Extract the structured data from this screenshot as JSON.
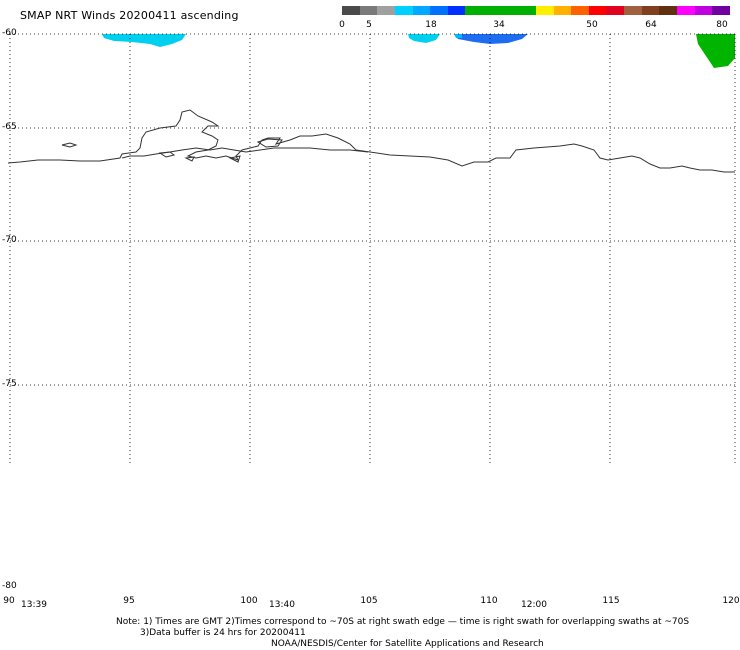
{
  "title": "SMAP NRT Winds 20200411 ascending",
  "colorbar": {
    "labels": [
      "0",
      "5",
      "18",
      "34",
      "50",
      "64",
      "80"
    ],
    "colors": [
      "#4a4a4a",
      "#7a7a7a",
      "#a0a0a0",
      "#00d0ff",
      "#00a8ff",
      "#0070ff",
      "#0030ff",
      "#00b000",
      "#00b000",
      "#00b000",
      "#00b000",
      "#ffee00",
      "#ffb000",
      "#ff6000",
      "#ff0000",
      "#e00020",
      "#a06040",
      "#804020",
      "#603010",
      "#ff00ff",
      "#c000e0",
      "#7000a0"
    ]
  },
  "lat_labels": [
    "-60",
    "-65",
    "-70",
    "-75",
    "-80"
  ],
  "lon_labels": [
    "90",
    "95",
    "100",
    "105",
    "110",
    "115",
    "120"
  ],
  "time_labels": [
    "13:39",
    "13:40",
    "12:00"
  ],
  "notes": {
    "line1": "Note: 1) Times are GMT 2)Times correspond to ~70S at right swath edge — time is right swath for overlapping swaths at ~70S",
    "line2": "3)Data buffer is 24 hrs for 20200411",
    "line3": "NOAA/NESDIS/Center for Satellite Applications and Research"
  },
  "swath_colors": {
    "light_cyan": "#00d0f0",
    "mid_blue": "#0090ff",
    "dark_blue": "#2060ff",
    "green": "#00b400"
  }
}
